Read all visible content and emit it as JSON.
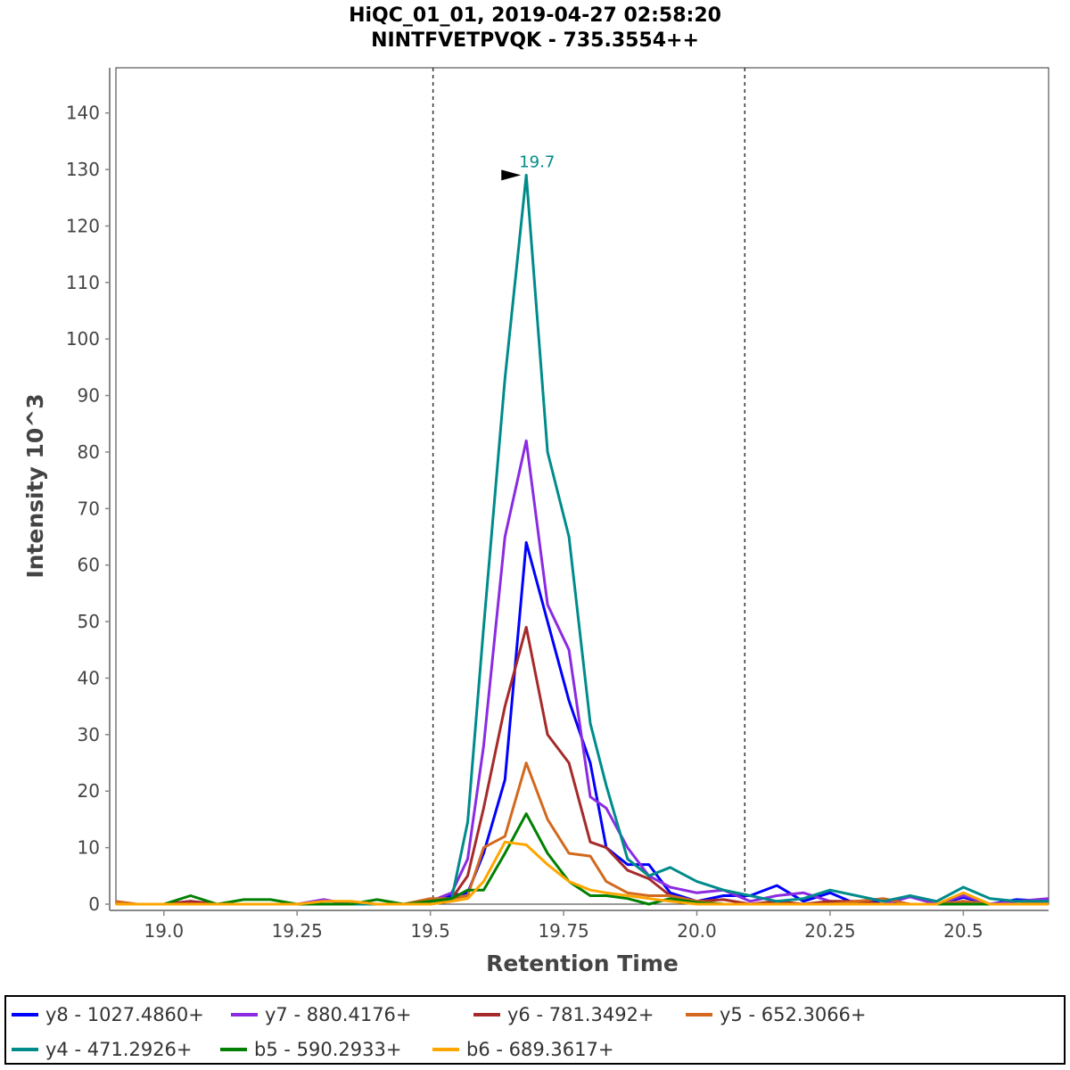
{
  "chart_data": {
    "type": "line",
    "title": "HiQC_01_01, 2019-04-27 02:58:20",
    "subtitle": "NINTFVETPVQK - 735.3554++",
    "xlabel": "Retention Time",
    "ylabel": "Intensity 10^3",
    "xlim": [
      18.91,
      20.66
    ],
    "ylim": [
      0,
      148
    ],
    "x_ticks": [
      19.0,
      19.25,
      19.5,
      19.75,
      20.0,
      20.25,
      20.5
    ],
    "x_tick_labels": [
      "19.0",
      "19.25",
      "19.5",
      "19.75",
      "20.0",
      "20.25",
      "20.5"
    ],
    "y_ticks": [
      0,
      10,
      20,
      30,
      40,
      50,
      60,
      70,
      80,
      90,
      100,
      110,
      120,
      130,
      140
    ],
    "y_tick_labels": [
      "0",
      "10",
      "20",
      "30",
      "40",
      "50",
      "60",
      "70",
      "80",
      "90",
      "100",
      "110",
      "120",
      "130",
      "140"
    ],
    "integration_boundaries": [
      19.505,
      20.09
    ],
    "peak_annotation": {
      "x": 19.68,
      "y": 129,
      "label": "19.7",
      "color": "#008b8b"
    },
    "legend_position": "bottom",
    "series": [
      {
        "name": "y8 - 1027.4860+",
        "color": "#0000ff",
        "x": [
          18.91,
          18.95,
          19.0,
          19.05,
          19.1,
          19.15,
          19.2,
          19.25,
          19.3,
          19.35,
          19.4,
          19.45,
          19.5,
          19.54,
          19.57,
          19.6,
          19.64,
          19.68,
          19.72,
          19.76,
          19.8,
          19.83,
          19.87,
          19.91,
          19.95,
          20.0,
          20.05,
          20.1,
          20.15,
          20.2,
          20.25,
          20.3,
          20.35,
          20.4,
          20.45,
          20.5,
          20.55,
          20.6,
          20.66
        ],
        "y": [
          0,
          0,
          0,
          0,
          0,
          0,
          0,
          0,
          0,
          0,
          0,
          0,
          0.5,
          1.5,
          2,
          9,
          22,
          64,
          50,
          36,
          25,
          10,
          7,
          7,
          2,
          0.5,
          1.5,
          1.5,
          3.3,
          0.5,
          2,
          0,
          0.7,
          0,
          0,
          1.2,
          0,
          0.8,
          0.5
        ]
      },
      {
        "name": "y7 - 880.4176+",
        "color": "#8a2be2",
        "x": [
          18.91,
          18.95,
          19.0,
          19.05,
          19.1,
          19.15,
          19.2,
          19.25,
          19.3,
          19.35,
          19.4,
          19.45,
          19.5,
          19.54,
          19.57,
          19.6,
          19.64,
          19.68,
          19.72,
          19.76,
          19.8,
          19.83,
          19.87,
          19.91,
          19.95,
          20.0,
          20.05,
          20.1,
          20.15,
          20.2,
          20.25,
          20.3,
          20.35,
          20.4,
          20.45,
          20.5,
          20.55,
          20.6,
          20.66
        ],
        "y": [
          0,
          0,
          0,
          0.5,
          0,
          0,
          0,
          0,
          0.8,
          0,
          0,
          0,
          0.5,
          2,
          8,
          28,
          65,
          82,
          53,
          45,
          19,
          17,
          10,
          5,
          3,
          2,
          2.5,
          0.5,
          1.5,
          2,
          0.5,
          0,
          0,
          1.3,
          0,
          1.5,
          0,
          0.5,
          1
        ]
      },
      {
        "name": "y6 - 781.3492+",
        "color": "#a52a2a",
        "x": [
          18.91,
          18.95,
          19.0,
          19.05,
          19.1,
          19.15,
          19.2,
          19.25,
          19.3,
          19.35,
          19.4,
          19.45,
          19.5,
          19.54,
          19.57,
          19.6,
          19.64,
          19.68,
          19.72,
          19.76,
          19.8,
          19.83,
          19.87,
          19.91,
          19.95,
          20.0,
          20.05,
          20.1,
          20.15,
          20.2,
          20.25,
          20.3,
          20.35,
          20.4,
          20.45,
          20.5,
          20.55,
          20.6,
          20.66
        ],
        "y": [
          0,
          0,
          0,
          0.5,
          0,
          0,
          0,
          0,
          0,
          0,
          0,
          0,
          0,
          1,
          5,
          17,
          35,
          49,
          30,
          25,
          11,
          10,
          6,
          4.5,
          1.5,
          0.5,
          0.8,
          0,
          0.5,
          0,
          0.5,
          0.5,
          0,
          0,
          0,
          0.5,
          0,
          0,
          0.2
        ]
      },
      {
        "name": "y5 - 652.3066+",
        "color": "#d2691e",
        "x": [
          18.91,
          18.95,
          19.0,
          19.05,
          19.1,
          19.15,
          19.2,
          19.25,
          19.3,
          19.35,
          19.4,
          19.45,
          19.5,
          19.54,
          19.57,
          19.6,
          19.64,
          19.68,
          19.72,
          19.76,
          19.8,
          19.83,
          19.87,
          19.91,
          19.95,
          20.0,
          20.05,
          20.1,
          20.15,
          20.2,
          20.25,
          20.3,
          20.35,
          20.4,
          20.45,
          20.5,
          20.55,
          20.6,
          20.66
        ],
        "y": [
          0.5,
          0,
          0,
          0,
          0,
          0,
          0,
          0,
          0,
          0,
          0,
          0,
          1,
          1,
          1.5,
          10,
          12,
          25,
          15,
          9,
          8.5,
          4,
          2,
          1.5,
          1.5,
          0.5,
          0,
          0,
          0,
          0,
          0,
          0.5,
          1,
          0,
          0,
          0.5,
          0,
          0,
          0.3
        ]
      },
      {
        "name": "y4 - 471.2926+",
        "color": "#008b8b",
        "x": [
          18.91,
          18.95,
          19.0,
          19.05,
          19.1,
          19.15,
          19.2,
          19.25,
          19.3,
          19.35,
          19.4,
          19.45,
          19.5,
          19.54,
          19.57,
          19.6,
          19.64,
          19.68,
          19.72,
          19.76,
          19.8,
          19.83,
          19.87,
          19.91,
          19.95,
          20.0,
          20.05,
          20.1,
          20.15,
          20.2,
          20.25,
          20.3,
          20.35,
          20.4,
          20.45,
          20.5,
          20.55,
          20.6,
          20.66
        ],
        "y": [
          0,
          0,
          0,
          0,
          0,
          0,
          0,
          0,
          0,
          0,
          0,
          0,
          0.3,
          1,
          14.5,
          49,
          93,
          129,
          80,
          65,
          32,
          21,
          8,
          5,
          6.5,
          4,
          2.5,
          1.5,
          0.5,
          1,
          2.5,
          1.5,
          0.5,
          1.5,
          0.5,
          3,
          1,
          0.5,
          0.5
        ]
      },
      {
        "name": "b5 - 590.2933+",
        "color": "#008000",
        "x": [
          18.91,
          18.95,
          19.0,
          19.05,
          19.1,
          19.15,
          19.2,
          19.25,
          19.3,
          19.35,
          19.4,
          19.45,
          19.5,
          19.54,
          19.57,
          19.6,
          19.64,
          19.68,
          19.72,
          19.76,
          19.8,
          19.83,
          19.87,
          19.91,
          19.95,
          20.0,
          20.05,
          20.1,
          20.15,
          20.2,
          20.25,
          20.3,
          20.35,
          20.4,
          20.45,
          20.5,
          20.55,
          20.6,
          20.66
        ],
        "y": [
          0,
          0,
          0,
          1.5,
          0,
          0.8,
          0.8,
          0,
          0,
          0,
          0.8,
          0,
          0.5,
          1,
          2.5,
          2.5,
          9,
          16,
          9,
          4,
          1.5,
          1.5,
          1,
          0,
          1,
          0.3,
          0,
          0,
          0,
          0,
          0,
          0,
          0,
          0,
          0,
          0,
          0,
          0,
          0
        ]
      },
      {
        "name": "b6 - 689.3617+",
        "color": "#ffa500",
        "x": [
          18.91,
          18.95,
          19.0,
          19.05,
          19.1,
          19.15,
          19.2,
          19.25,
          19.3,
          19.35,
          19.4,
          19.45,
          19.5,
          19.54,
          19.57,
          19.6,
          19.64,
          19.68,
          19.72,
          19.76,
          19.8,
          19.83,
          19.87,
          19.91,
          19.95,
          20.0,
          20.05,
          20.1,
          20.15,
          20.2,
          20.25,
          20.3,
          20.35,
          20.4,
          20.45,
          20.5,
          20.55,
          20.6,
          20.66
        ],
        "y": [
          0,
          0,
          0,
          0,
          0,
          0,
          0,
          0,
          0.5,
          0.5,
          0,
          0,
          0,
          0.5,
          1,
          4,
          11,
          10.5,
          7,
          4,
          2.5,
          2,
          1.5,
          1,
          0.5,
          0,
          0,
          0,
          0,
          0,
          0,
          0,
          0,
          0,
          0,
          2,
          0,
          0,
          0
        ]
      }
    ]
  }
}
